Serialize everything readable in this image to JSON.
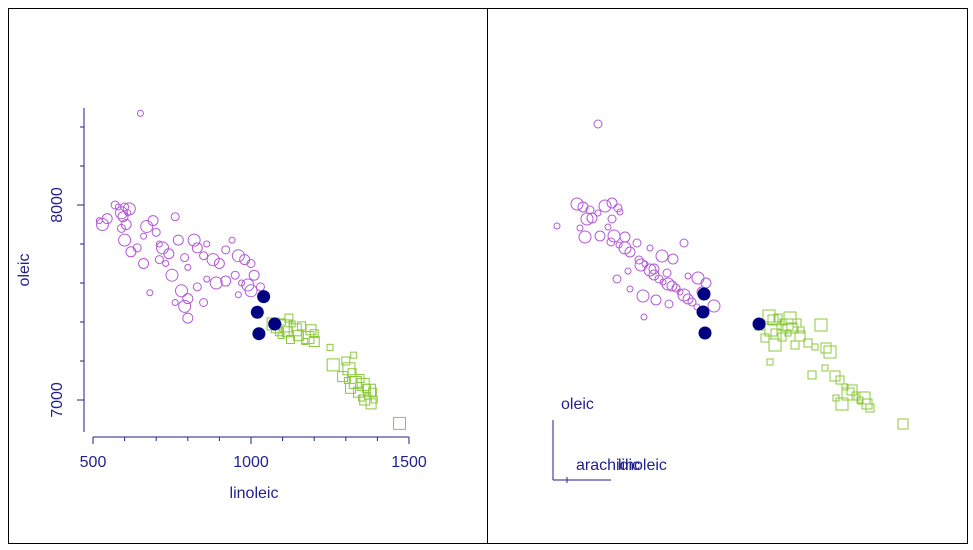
{
  "colors": {
    "axis": "#1f1f8f",
    "highlight": "#000080",
    "purple": "#b35ad6",
    "green": "#8bc83b",
    "frame": "#000000"
  },
  "panels": [
    {
      "name": "scatterplot",
      "xlabel": "linoleic",
      "ylabel": "oleic",
      "xticks": [
        "500",
        "1000",
        "1500"
      ],
      "yticks": [
        "7000",
        "8000"
      ]
    },
    {
      "name": "tour-view",
      "axes_legend": [
        {
          "label": "oleic"
        },
        {
          "label": "arachidic"
        },
        {
          "label": "linoleic"
        }
      ]
    }
  ],
  "chart_data": [
    {
      "type": "scatter",
      "title": "",
      "xlabel": "linoleic",
      "ylabel": "oleic",
      "xlim": [
        450,
        1550
      ],
      "ylim": [
        6850,
        8450
      ],
      "series": [
        {
          "marker": "circle",
          "color": "#b35ad6",
          "points": [
            [
              520,
              7920
            ],
            [
              530,
              7900
            ],
            [
              545,
              7930
            ],
            [
              570,
              8000
            ],
            [
              580,
              7990
            ],
            [
              590,
              7960
            ],
            [
              595,
              7940
            ],
            [
              600,
              7990
            ],
            [
              610,
              7960
            ],
            [
              615,
              7980
            ],
            [
              605,
              7900
            ],
            [
              590,
              7880
            ],
            [
              650,
              8470
            ],
            [
              600,
              7820
            ],
            [
              620,
              7760
            ],
            [
              640,
              7780
            ],
            [
              660,
              7840
            ],
            [
              670,
              7890
            ],
            [
              690,
              7920
            ],
            [
              700,
              7860
            ],
            [
              710,
              7800
            ],
            [
              720,
              7780
            ],
            [
              740,
              7750
            ],
            [
              760,
              7940
            ],
            [
              730,
              7700
            ],
            [
              750,
              7640
            ],
            [
              770,
              7820
            ],
            [
              790,
              7730
            ],
            [
              800,
              7680
            ],
            [
              820,
              7820
            ],
            [
              830,
              7780
            ],
            [
              850,
              7740
            ],
            [
              860,
              7800
            ],
            [
              880,
              7720
            ],
            [
              900,
              7700
            ],
            [
              920,
              7770
            ],
            [
              940,
              7820
            ],
            [
              960,
              7740
            ],
            [
              980,
              7720
            ],
            [
              1000,
              7700
            ],
            [
              680,
              7550
            ],
            [
              780,
              7560
            ],
            [
              800,
              7520
            ],
            [
              830,
              7580
            ],
            [
              860,
              7620
            ],
            [
              890,
              7600
            ],
            [
              920,
              7610
            ],
            [
              950,
              7640
            ],
            [
              970,
              7600
            ],
            [
              990,
              7590
            ],
            [
              1010,
              7640
            ],
            [
              1030,
              7580
            ],
            [
              760,
              7500
            ],
            [
              790,
              7480
            ],
            [
              800,
              7420
            ],
            [
              850,
              7500
            ],
            [
              960,
              7540
            ],
            [
              1000,
              7560
            ],
            [
              660,
              7700
            ],
            [
              710,
              7720
            ]
          ]
        },
        {
          "marker": "square",
          "color": "#8bc83b",
          "points": [
            [
              1070,
              7390
            ],
            [
              1080,
              7370
            ],
            [
              1090,
              7350
            ],
            [
              1100,
              7400
            ],
            [
              1110,
              7380
            ],
            [
              1115,
              7350
            ],
            [
              1120,
              7420
            ],
            [
              1130,
              7390
            ],
            [
              1140,
              7360
            ],
            [
              1150,
              7330
            ],
            [
              1160,
              7380
            ],
            [
              1170,
              7300
            ],
            [
              1180,
              7320
            ],
            [
              1190,
              7360
            ],
            [
              1200,
              7340
            ],
            [
              1250,
              7270
            ],
            [
              1260,
              7180
            ],
            [
              1290,
              7120
            ],
            [
              1300,
              7200
            ],
            [
              1305,
              7100
            ],
            [
              1310,
              7160
            ],
            [
              1315,
              7060
            ],
            [
              1320,
              7140
            ],
            [
              1325,
              7230
            ],
            [
              1330,
              7090
            ],
            [
              1340,
              7040
            ],
            [
              1345,
              7110
            ],
            [
              1350,
              7010
            ],
            [
              1355,
              7080
            ],
            [
              1360,
              7000
            ],
            [
              1365,
              7060
            ],
            [
              1370,
              7020
            ],
            [
              1375,
              7050
            ],
            [
              1380,
              6980
            ],
            [
              1385,
              7040
            ],
            [
              1390,
              7000
            ],
            [
              1470,
              6880
            ],
            [
              1200,
              7300
            ],
            [
              1125,
              7310
            ],
            [
              1095,
              7330
            ]
          ]
        },
        {
          "marker": "filled-circle",
          "color": "#000080",
          "points": [
            [
              1040,
              7530
            ],
            [
              1020,
              7450
            ],
            [
              1075,
              7390
            ],
            [
              1025,
              7340
            ]
          ]
        }
      ]
    },
    {
      "type": "scatter",
      "title": "",
      "series": [
        {
          "marker": "circle",
          "color": "#b35ad6",
          "points": [
            [
              557,
              226
            ],
            [
              577,
              204
            ],
            [
              583,
              207
            ],
            [
              590,
              210
            ],
            [
              598,
              213
            ],
            [
              605,
              206
            ],
            [
              612,
              203
            ],
            [
              618,
              208
            ],
            [
              620,
              212
            ],
            [
              587,
              219
            ],
            [
              592,
              218
            ],
            [
              598,
              124
            ],
            [
              580,
              228
            ],
            [
              585,
              237
            ],
            [
              600,
              236
            ],
            [
              611,
              242
            ],
            [
              619,
              245
            ],
            [
              625,
              248
            ],
            [
              630,
              252
            ],
            [
              639,
              260
            ],
            [
              645,
              264
            ],
            [
              650,
              270
            ],
            [
              654,
              275
            ],
            [
              659,
              279
            ],
            [
              663,
              282
            ],
            [
              668,
              284
            ],
            [
              672,
              286
            ],
            [
              676,
              288
            ],
            [
              680,
              292
            ],
            [
              684,
              295
            ],
            [
              688,
              299
            ],
            [
              692,
              302
            ],
            [
              697,
              307
            ],
            [
              614,
              236
            ],
            [
              625,
              237
            ],
            [
              637,
              243
            ],
            [
              650,
              248
            ],
            [
              662,
              256
            ],
            [
              673,
              259
            ],
            [
              684,
              243
            ],
            [
              628,
              271
            ],
            [
              641,
              265
            ],
            [
              654,
              269
            ],
            [
              667,
              273
            ],
            [
              688,
              276
            ],
            [
              698,
              278
            ],
            [
              706,
              283
            ],
            [
              617,
              279
            ],
            [
              630,
              289
            ],
            [
              643,
              296
            ],
            [
              656,
              300
            ],
            [
              669,
              304
            ],
            [
              644,
              317
            ],
            [
              714,
              306
            ],
            [
              702,
              292
            ],
            [
              612,
              219
            ],
            [
              608,
              227
            ]
          ]
        },
        {
          "marker": "square",
          "color": "#8bc83b",
          "points": [
            [
              769,
              316
            ],
            [
              773,
              320
            ],
            [
              778,
              318
            ],
            [
              783,
              322
            ],
            [
              787,
              325
            ],
            [
              792,
              328
            ],
            [
              797,
              323
            ],
            [
              801,
              330
            ],
            [
              771,
              330
            ],
            [
              776,
              334
            ],
            [
              782,
              337
            ],
            [
              788,
              333
            ],
            [
              775,
              345
            ],
            [
              760,
              325
            ],
            [
              765,
              338
            ],
            [
              780,
              327
            ],
            [
              790,
              318
            ],
            [
              800,
              336
            ],
            [
              808,
              343
            ],
            [
              815,
              347
            ],
            [
              821,
              325
            ],
            [
              826,
              348
            ],
            [
              812,
              375
            ],
            [
              825,
              368
            ],
            [
              830,
              352
            ],
            [
              835,
              376
            ],
            [
              840,
              380
            ],
            [
              845,
              387
            ],
            [
              848,
              394
            ],
            [
              852,
              390
            ],
            [
              856,
              396
            ],
            [
              860,
              400
            ],
            [
              864,
              398
            ],
            [
              867,
              404
            ],
            [
              870,
              408
            ],
            [
              836,
              398
            ],
            [
              842,
              404
            ],
            [
              903,
              424
            ],
            [
              795,
              345
            ],
            [
              770,
              362
            ]
          ]
        },
        {
          "marker": "filled-circle",
          "color": "#000080",
          "points": [
            [
              704,
              294
            ],
            [
              703,
              312
            ],
            [
              705,
              333
            ],
            [
              759,
              324
            ]
          ]
        }
      ]
    }
  ]
}
